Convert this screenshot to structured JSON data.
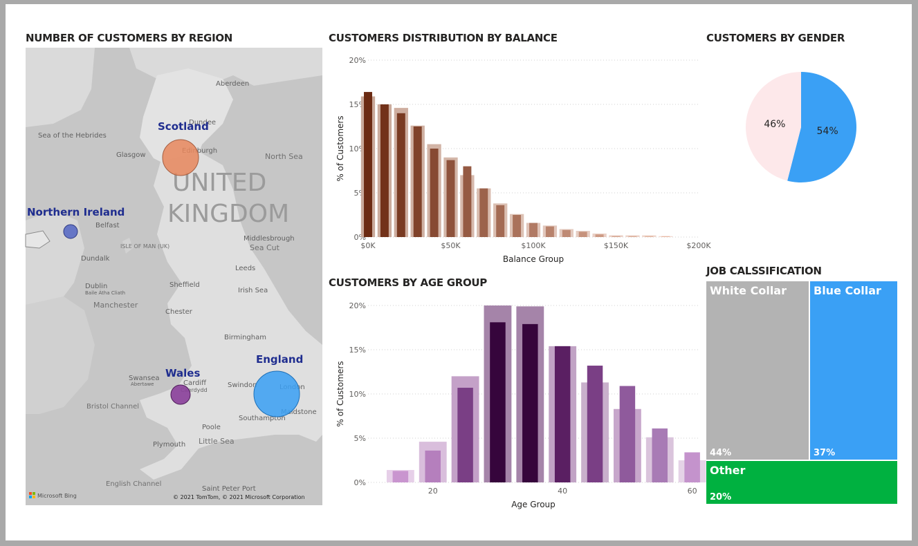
{
  "visuals": {
    "map_title": "NUMBER OF CUSTOMERS BY REGION",
    "balance_title": "CUSTOMERS DISTRIBUTION BY BALANCE",
    "gender_title": "CUSTOMERS BY GENDER",
    "age_title": "CUSTOMERS BY AGE GROUP",
    "job_title": "JOB CALSSIFICATION"
  },
  "map": {
    "country_label_1": "UNITED",
    "country_label_2": "KINGDOM",
    "regions": [
      {
        "name": "Scotland",
        "color": "#e8875d"
      },
      {
        "name": "Northern Ireland",
        "color": "#5a6bc4"
      },
      {
        "name": "Wales",
        "color": "#8a3f9a"
      },
      {
        "name": "England",
        "color": "#3aa0f5"
      }
    ],
    "places": [
      "Aberdeen",
      "Dundee",
      "Sea of the Hebrides",
      "Glasgow",
      "Edinburgh",
      "North Sea",
      "Belfast",
      "ISLE OF MAN (UK)",
      "Dundalk",
      "Middlesbrough",
      "Sea Cut",
      "Leeds",
      "Dublin",
      "Baile Átha Cliath",
      "Manchester",
      "Sheffield",
      "Irish Sea",
      "Chester",
      "Birmingham",
      "Swansea",
      "Abertawe",
      "Cardiff",
      "Caerdydd",
      "Swindon",
      "London",
      "Maidstone",
      "Bristol Channel",
      "Poole",
      "Southampton",
      "Plymouth",
      "Little Sea",
      "English Channel",
      "Saint Peter Port"
    ],
    "bing_logo": "Microsoft Bing",
    "copyright": "© 2021 TomTom, © 2021 Microsoft Corporation"
  },
  "chart_data": [
    {
      "id": "balance",
      "type": "bar",
      "title": "CUSTOMERS DISTRIBUTION BY BALANCE",
      "xlabel": "Balance Group",
      "ylabel": "% of Customers",
      "x_unit": "$K",
      "ylim": [
        0,
        20
      ],
      "yticks": [
        "0%",
        "5%",
        "10%",
        "15%",
        "20%"
      ],
      "xticks": [
        "$0K",
        "$50K",
        "$100K",
        "$150K",
        "$200K"
      ],
      "xlim": [
        0,
        200
      ],
      "grid": true,
      "bin_width": 10,
      "x": [
        0,
        10,
        20,
        30,
        40,
        50,
        60,
        70,
        80,
        90,
        100,
        110,
        120,
        130,
        140,
        150,
        160,
        170,
        180,
        190
      ],
      "series": [
        {
          "values": [
            16.4,
            15.0,
            14.0,
            12.5,
            10.0,
            8.7,
            8.0,
            5.5,
            3.6,
            2.5,
            1.6,
            1.2,
            0.8,
            0.6,
            0.3,
            0.1,
            0.1,
            0.1,
            0.1,
            0.0
          ]
        },
        {
          "values": [
            15.9,
            15.0,
            14.6,
            12.6,
            10.5,
            9.0,
            7.0,
            5.5,
            3.8,
            2.6,
            1.6,
            1.3,
            0.9,
            0.7,
            0.4,
            0.2,
            0.2,
            0.2,
            0.1,
            0.0
          ]
        }
      ]
    },
    {
      "id": "age",
      "type": "bar",
      "title": "CUSTOMERS BY AGE GROUP",
      "xlabel": "Age Group",
      "ylabel": "% of Customers",
      "ylim": [
        0,
        20
      ],
      "yticks": [
        "0%",
        "5%",
        "10%",
        "15%",
        "20%"
      ],
      "xticks": [
        20,
        40,
        60
      ],
      "xlim": [
        10,
        61
      ],
      "grid": true,
      "bin_width": 5,
      "x": [
        15,
        20,
        25,
        30,
        35,
        40,
        45,
        50,
        55,
        60
      ],
      "series": [
        {
          "values": [
            1.3,
            3.6,
            10.7,
            18.1,
            17.9,
            15.4,
            13.2,
            10.9,
            6.1,
            3.4
          ]
        },
        {
          "values": [
            1.4,
            4.6,
            12.0,
            20.0,
            19.9,
            15.4,
            11.3,
            8.3,
            5.1,
            2.5
          ]
        }
      ]
    },
    {
      "id": "gender",
      "type": "pie",
      "title": "CUSTOMERS BY GENDER",
      "labels": [
        "54%",
        "46%"
      ],
      "values": [
        54,
        46
      ],
      "colors": [
        "#3aa0f5",
        "#fde8ea"
      ]
    },
    {
      "id": "job",
      "type": "treemap",
      "title": "JOB CALSSIFICATION",
      "categories": [
        "White Collar",
        "Blue Collar",
        "Other"
      ],
      "values": [
        44,
        37,
        20
      ],
      "labels": [
        "44%",
        "37%",
        "20%"
      ],
      "colors": [
        "#b3b3b3",
        "#3aa0f5",
        "#00b140"
      ]
    }
  ]
}
